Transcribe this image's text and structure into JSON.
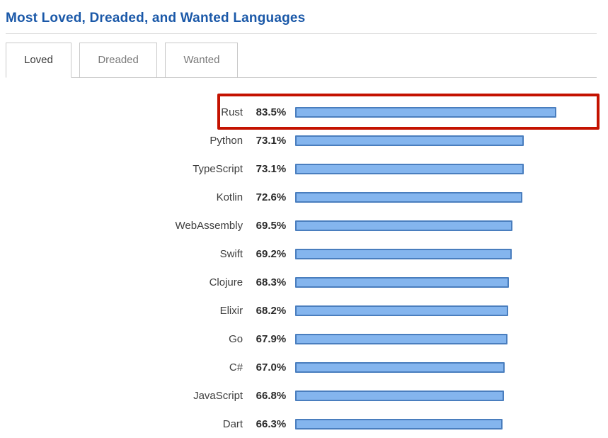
{
  "page": {
    "title": "Most Loved, Dreaded, and Wanted Languages"
  },
  "tabs": [
    {
      "label": "Loved",
      "active": true
    },
    {
      "label": "Dreaded",
      "active": false
    },
    {
      "label": "Wanted",
      "active": false
    }
  ],
  "colors": {
    "title_blue": "#1a58a8",
    "bar_fill": "#84b5ee",
    "bar_border": "#4a7ebe",
    "annotation_red": "#c41200"
  },
  "chart_data": {
    "type": "bar",
    "orientation": "horizontal",
    "title": "Most Loved, Dreaded, and Wanted Languages",
    "active_tab": "Loved",
    "categories": [
      "Rust",
      "Python",
      "TypeScript",
      "Kotlin",
      "WebAssembly",
      "Swift",
      "Clojure",
      "Elixir",
      "Go",
      "C#",
      "JavaScript",
      "Dart"
    ],
    "values": [
      83.5,
      73.1,
      73.1,
      72.6,
      69.5,
      69.2,
      68.3,
      68.2,
      67.9,
      67.0,
      66.8,
      66.3
    ],
    "value_labels": [
      "83.5%",
      "73.1%",
      "73.1%",
      "72.6%",
      "69.5%",
      "69.2%",
      "68.3%",
      "68.2%",
      "67.9%",
      "67.0%",
      "66.8%",
      "66.3%"
    ],
    "xlabel": "",
    "ylabel": "",
    "xlim": [
      0,
      100
    ],
    "grid": false,
    "legend": false,
    "highlighted_category": "Rust",
    "highlight_style": "red annotation rectangle around row"
  }
}
